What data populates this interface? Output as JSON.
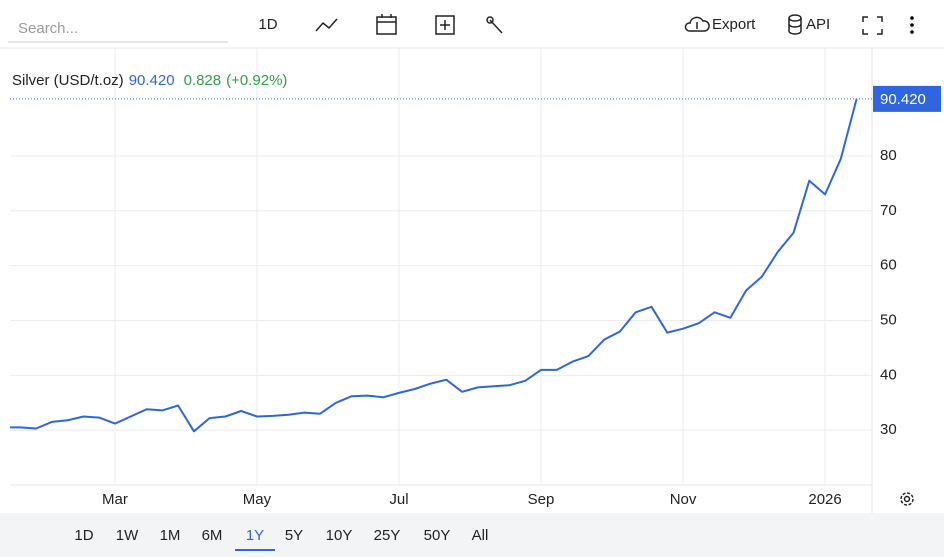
{
  "toolbar": {
    "search_placeholder": "Search...",
    "interval": "1D",
    "export": "Export",
    "api": "API"
  },
  "range_buttons": [
    "1D",
    "1W",
    "1M",
    "6M",
    "1Y",
    "5Y",
    "10Y",
    "25Y",
    "50Y",
    "All"
  ],
  "active_range_index": 4,
  "chart_data": {
    "type": "line",
    "categories": [
      null,
      null,
      null,
      null,
      null,
      null,
      null,
      "Mar",
      null,
      null,
      null,
      null,
      null,
      null,
      null,
      null,
      "May",
      null,
      null,
      null,
      null,
      null,
      null,
      null,
      null,
      "Jul",
      null,
      null,
      null,
      null,
      null,
      null,
      null,
      null,
      "Sep",
      null,
      null,
      null,
      null,
      null,
      null,
      null,
      null,
      "Nov",
      null,
      null,
      null,
      null,
      null,
      null,
      null,
      null,
      "2026",
      null,
      null
    ],
    "series": [
      {
        "name": "Silver (USD/t.oz)",
        "color": "#2f66e0",
        "values": [
          30.5,
          30.5,
          30.3,
          31.5,
          31.8,
          32.5,
          32.3,
          31.2,
          32.5,
          33.8,
          33.6,
          34.5,
          29.8,
          32.2,
          32.5,
          33.5,
          32.5,
          32.6,
          32.8,
          33.2,
          33.0,
          35.0,
          36.2,
          36.3,
          36.0,
          36.8,
          37.5,
          38.5,
          39.2,
          37.0,
          37.8,
          38.0,
          38.2,
          39.0,
          41.0,
          41.0,
          42.5,
          43.5,
          46.5,
          48.0,
          51.5,
          52.5,
          47.8,
          48.5,
          49.5,
          51.5,
          50.5,
          55.5,
          58.0,
          62.5,
          66.0,
          75.5,
          73.0,
          79.5,
          90.42
        ],
        "value_labels": [
          null,
          null,
          null,
          null,
          null,
          null,
          null,
          null,
          null,
          null,
          null,
          null,
          null,
          null,
          null,
          null,
          null,
          null,
          null,
          null,
          null,
          null,
          null,
          null,
          null,
          null,
          null,
          null,
          null,
          null,
          null,
          null,
          null,
          null,
          null,
          null,
          null,
          null,
          null,
          null,
          null,
          null,
          null,
          null,
          null,
          null,
          null,
          null,
          null,
          null,
          null,
          null,
          null,
          null,
          "90.420"
        ]
      }
    ],
    "change": 0.828,
    "change_label": "(+0.92%)",
    "ylim": [
      20,
      99.7
    ],
    "yticks": [
      30,
      40,
      50,
      60,
      70,
      80
    ],
    "grid": true
  }
}
